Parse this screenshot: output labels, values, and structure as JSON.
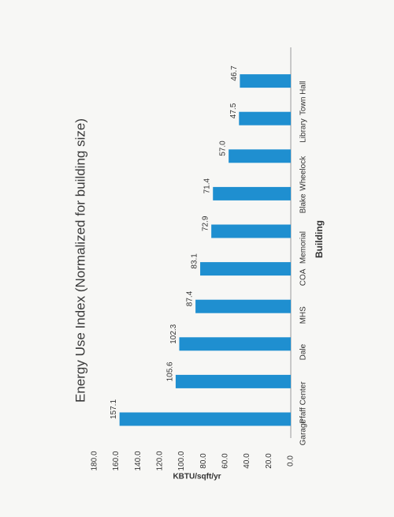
{
  "chart_data": {
    "type": "bar",
    "title": "Energy Use Index (Normalized for building size)",
    "xlabel": "Building",
    "ylabel": "KBTU/sqft/yr",
    "categories": [
      "Garage",
      "Pfaff Center",
      "Dale",
      "MHS",
      "COA",
      "Memorial",
      "Blake",
      "Wheelock",
      "Library",
      "Town Hall"
    ],
    "values": [
      157.1,
      105.6,
      102.3,
      87.4,
      83.1,
      72.9,
      71.4,
      57.0,
      47.5,
      46.7
    ],
    "value_labels": [
      "157.1",
      "105.6",
      "102.3",
      "87.4",
      "83.1",
      "72.9",
      "71.4",
      "57.0",
      "47.5",
      "46.7"
    ],
    "ylim": [
      0,
      180
    ],
    "yticks": [
      "0.0",
      "20.0",
      "40.0",
      "60.0",
      "80.0",
      "100.0",
      "120.0",
      "140.0",
      "160.0",
      "180.0"
    ],
    "ytick_values": [
      0,
      20,
      40,
      60,
      80,
      100,
      120,
      140,
      160,
      180
    ],
    "bar_color": "#1f8fd0",
    "grid": false,
    "orientation": "rotated-90-ccw"
  }
}
